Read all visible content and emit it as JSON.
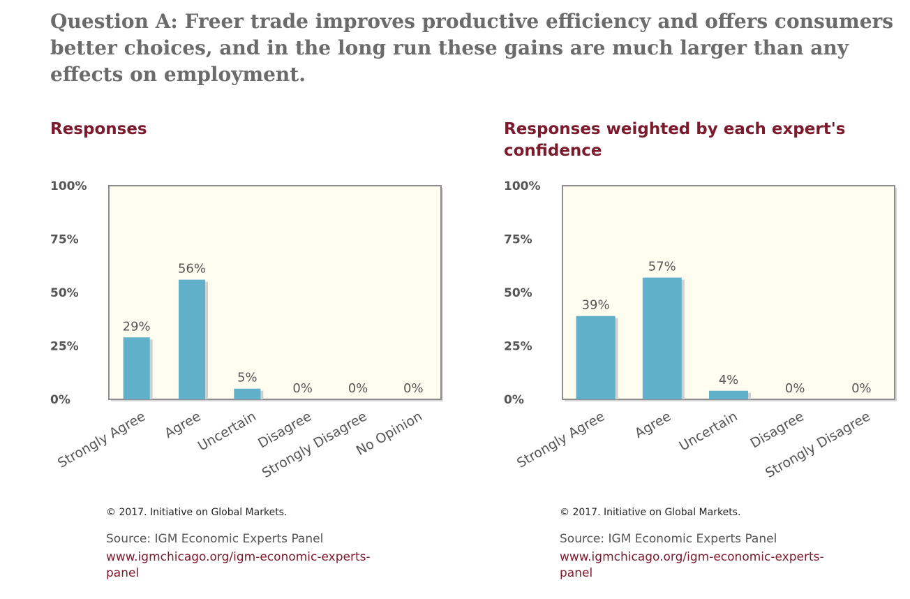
{
  "question": "Question A: Freer trade improves productive efficiency and offers consumers better choices, and in the long run these gains are much larger than any effects on employment.",
  "colors": {
    "bar": "#5fb0c8",
    "plot_background": "#fffdf0",
    "plot_border": "#8c8c8c",
    "title": "#7a1a2c",
    "axis_text": "#555555"
  },
  "chart_data": [
    {
      "type": "bar",
      "title": "Responses",
      "categories": [
        "Strongly Agree",
        "Agree",
        "Uncertain",
        "Disagree",
        "Strongly Disagree",
        "No Opinion"
      ],
      "values": [
        29,
        56,
        5,
        0,
        0,
        0
      ],
      "value_labels": [
        "29%",
        "56%",
        "5%",
        "0%",
        "0%",
        "0%"
      ],
      "ylim": [
        0,
        100
      ],
      "yticks": [
        "0%",
        "25%",
        "50%",
        "75%",
        "100%"
      ],
      "xlabel": "",
      "ylabel": "",
      "grid": false
    },
    {
      "type": "bar",
      "title": "Responses weighted by each expert's confidence",
      "categories": [
        "Strongly Agree",
        "Agree",
        "Uncertain",
        "Disagree",
        "Strongly Disagree"
      ],
      "values": [
        39,
        57,
        4,
        0,
        0
      ],
      "value_labels": [
        "39%",
        "57%",
        "4%",
        "0%",
        "0%"
      ],
      "ylim": [
        0,
        100
      ],
      "yticks": [
        "0%",
        "25%",
        "50%",
        "75%",
        "100%"
      ],
      "xlabel": "",
      "ylabel": "",
      "grid": false
    }
  ],
  "footers": [
    {
      "copyright": "© 2017. Initiative on Global Markets.",
      "source": "Source: IGM Economic Experts Panel",
      "url_line1": "www.igmchicago.org/igm-economic-experts-",
      "url_line2": "panel"
    },
    {
      "copyright": "© 2017. Initiative on Global Markets.",
      "source": "Source: IGM Economic Experts Panel",
      "url_line1": "www.igmchicago.org/igm-economic-experts-",
      "url_line2": "panel"
    }
  ]
}
